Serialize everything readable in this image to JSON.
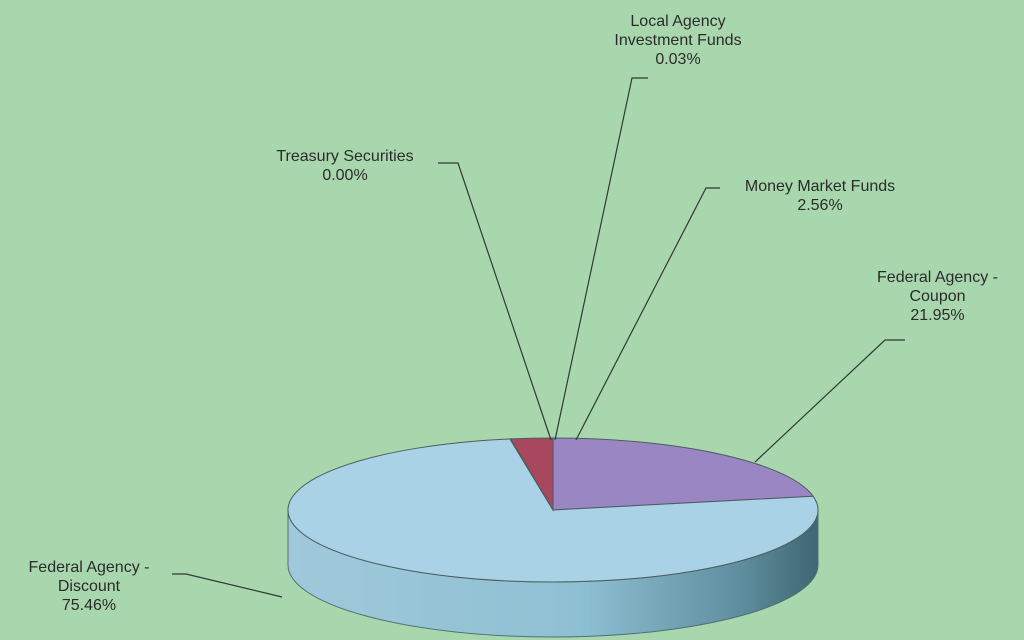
{
  "chart_data": {
    "type": "pie",
    "style": "3d",
    "title": "",
    "slices": [
      {
        "label": "Federal Agency - Coupon",
        "label_lines": [
          "Federal Agency -",
          "Coupon"
        ],
        "pct_label": "21.95%",
        "value": 21.95,
        "color": "#9a86c2"
      },
      {
        "label": "Federal Agency - Discount",
        "label_lines": [
          "Federal Agency -",
          "Discount"
        ],
        "pct_label": "75.46%",
        "value": 75.46,
        "color": "#a9d2e6"
      },
      {
        "label": "Treasury Securities",
        "label_lines": [
          "Treasury Securities"
        ],
        "pct_label": "0.00%",
        "value": 0.0,
        "color": "#c8b46a"
      },
      {
        "label": "Local Agency Investment Funds",
        "label_lines": [
          "Local Agency",
          "Investment Funds"
        ],
        "pct_label": "0.03%",
        "value": 0.03,
        "color": "#8fb0c8"
      },
      {
        "label": "Money Market Funds",
        "label_lines": [
          "Money Market Funds"
        ],
        "pct_label": "2.56%",
        "value": 2.56,
        "color": "#a8485f"
      }
    ]
  }
}
